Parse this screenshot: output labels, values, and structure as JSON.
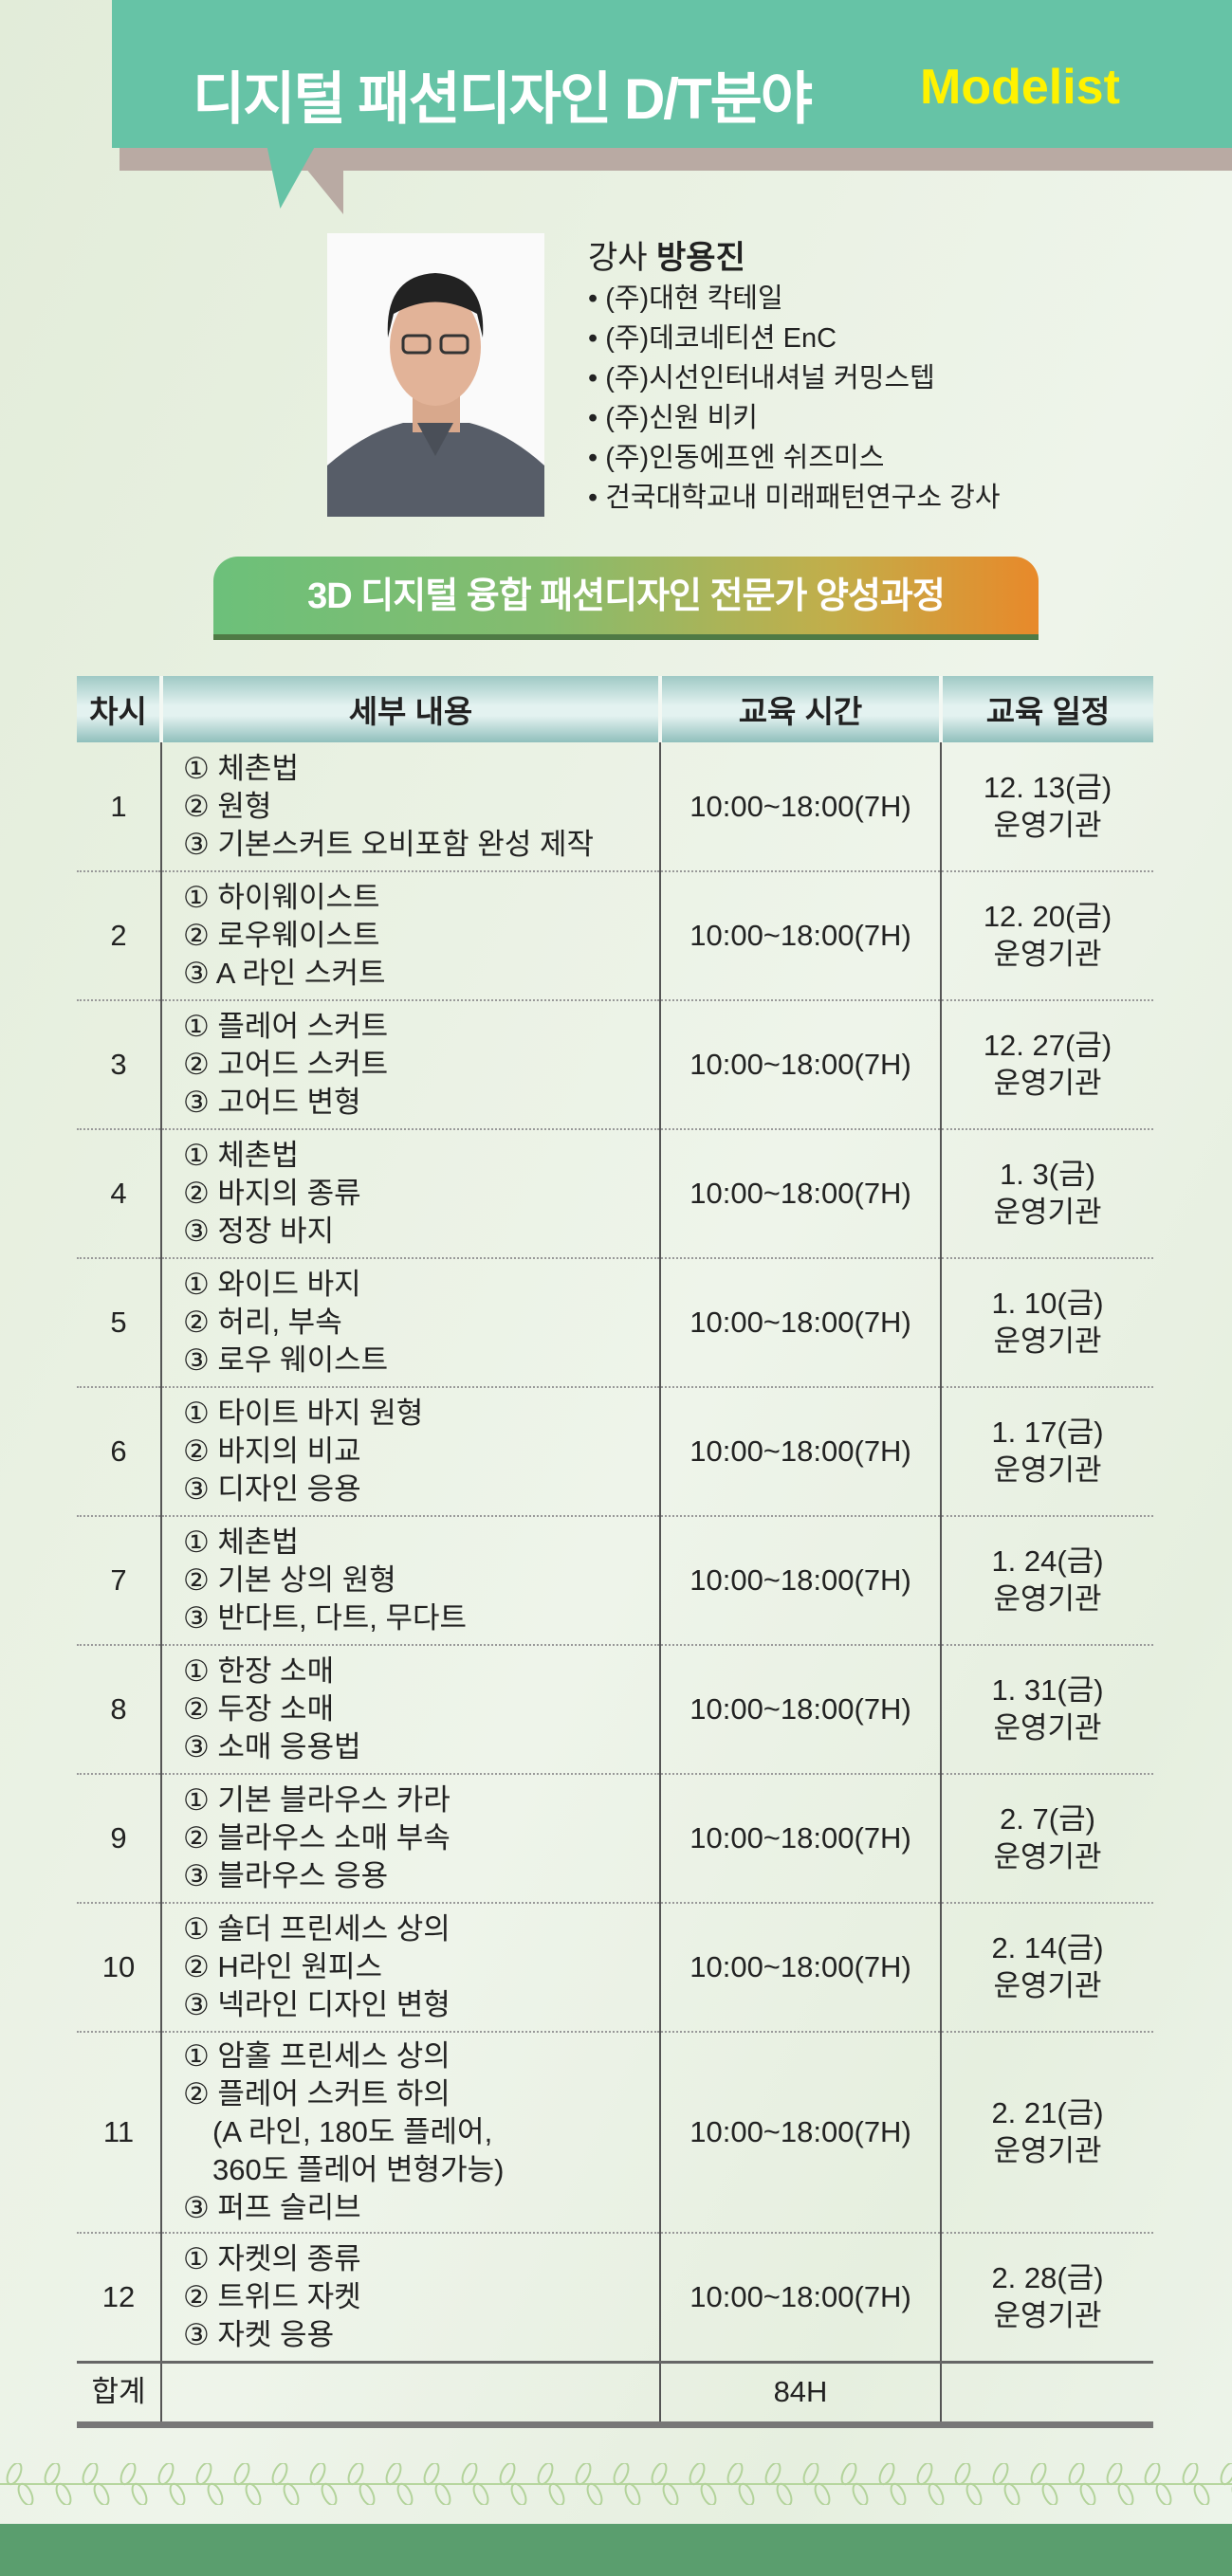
{
  "header": {
    "title": "디지털 패션디자인 D/T분야",
    "subtitle": "Modelist"
  },
  "instructor": {
    "label": "강사",
    "name": "방용진",
    "career": [
      "(주)대현 칵테일",
      "(주)데코네티션 EnC",
      "(주)시선인터내셔널 커밍스텝",
      "(주)신원 비키",
      "(주)인동에프엔 쉬즈미스",
      "건국대학교내 미래패턴연구소 강사"
    ]
  },
  "course_title": "3D 디지털 융합 패션디자인 전문가 양성과정",
  "table": {
    "headers": [
      "차시",
      "세부 내용",
      "교육 시간",
      "교육 일정"
    ],
    "rows": [
      {
        "no": "1",
        "content": [
          "① 체촌법",
          "② 원형",
          "③ 기본스커트 오비포함 완성 제작"
        ],
        "time": "10:00~18:00(7H)",
        "date": "12. 13(금)",
        "org": "운영기관"
      },
      {
        "no": "2",
        "content": [
          "① 하이웨이스트",
          "② 로우웨이스트",
          "③ A 라인 스커트"
        ],
        "time": "10:00~18:00(7H)",
        "date": "12. 20(금)",
        "org": "운영기관"
      },
      {
        "no": "3",
        "content": [
          "① 플레어 스커트",
          "② 고어드 스커트",
          "③ 고어드 변형"
        ],
        "time": "10:00~18:00(7H)",
        "date": "12. 27(금)",
        "org": "운영기관"
      },
      {
        "no": "4",
        "content": [
          "① 체촌법",
          "② 바지의 종류",
          "③ 정장 바지"
        ],
        "time": "10:00~18:00(7H)",
        "date": "1. 3(금)",
        "org": "운영기관"
      },
      {
        "no": "5",
        "content": [
          "① 와이드 바지",
          "② 허리, 부속",
          "③ 로우 웨이스트"
        ],
        "time": "10:00~18:00(7H)",
        "date": "1. 10(금)",
        "org": "운영기관"
      },
      {
        "no": "6",
        "content": [
          "① 타이트 바지 원형",
          "② 바지의 비교",
          "③ 디자인 응용"
        ],
        "time": "10:00~18:00(7H)",
        "date": "1. 17(금)",
        "org": "운영기관"
      },
      {
        "no": "7",
        "content": [
          "① 체촌법",
          "② 기본 상의 원형",
          "③ 반다트, 다트, 무다트"
        ],
        "time": "10:00~18:00(7H)",
        "date": "1. 24(금)",
        "org": "운영기관"
      },
      {
        "no": "8",
        "content": [
          "① 한장 소매",
          "② 두장 소매",
          "③ 소매 응용법"
        ],
        "time": "10:00~18:00(7H)",
        "date": "1. 31(금)",
        "org": "운영기관"
      },
      {
        "no": "9",
        "content": [
          "① 기본 블라우스 카라",
          "② 블라우스 소매 부속",
          "③ 블라우스 응용"
        ],
        "time": "10:00~18:00(7H)",
        "date": "2. 7(금)",
        "org": "운영기관"
      },
      {
        "no": "10",
        "content": [
          "① 숄더 프린세스 상의",
          "② H라인 원피스",
          "③ 넥라인 디자인 변형"
        ],
        "time": "10:00~18:00(7H)",
        "date": "2. 14(금)",
        "org": "운영기관"
      },
      {
        "no": "11",
        "content": [
          "① 암홀 프린세스 상의",
          "② 플레어 스커트 하의",
          "　(A 라인, 180도 플레어,",
          "　360도 플레어 변형가능)",
          "③ 퍼프 슬리브"
        ],
        "time": "10:00~18:00(7H)",
        "date": "2. 21(금)",
        "org": "운영기관"
      },
      {
        "no": "12",
        "content": [
          "① 자켓의 종류",
          "② 트위드 자켓",
          "③ 자켓 응용"
        ],
        "time": "10:00~18:00(7H)",
        "date": "2. 28(금)",
        "org": "운영기관"
      }
    ],
    "total": {
      "label": "합계",
      "time": "84H"
    }
  },
  "colors": {
    "header": "#66c3a6",
    "accent_yellow": "#fff200",
    "footer": "#5a9e6e"
  }
}
